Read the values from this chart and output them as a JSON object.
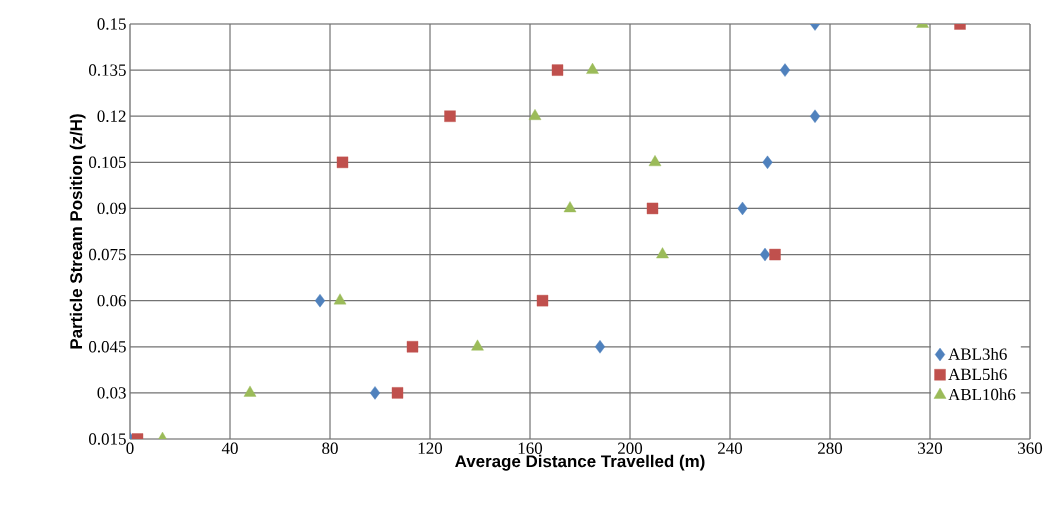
{
  "chart_data": {
    "type": "scatter",
    "xlabel": "Average Distance Travelled (m)",
    "ylabel": "Particle Stream Position (z/H)",
    "xlim": [
      0,
      360
    ],
    "xticks": [
      0,
      40,
      80,
      120,
      160,
      200,
      240,
      280,
      320,
      360
    ],
    "ylim": [
      0.015,
      0.15
    ],
    "yticks": [
      0.015,
      0.03,
      0.045,
      0.06,
      0.075,
      0.09,
      0.105,
      0.12,
      0.135,
      0.15
    ],
    "grid": true,
    "legend": "bottom right",
    "series": [
      {
        "name": "ABL3h6",
        "color": "#4f81bd",
        "marker": "diamond",
        "x": [
          0,
          98,
          188,
          76,
          254,
          245,
          255,
          274,
          262,
          274
        ],
        "values": [
          0.015,
          0.03,
          0.045,
          0.06,
          0.075,
          0.09,
          0.105,
          0.12,
          0.135,
          0.15
        ]
      },
      {
        "name": "ABL5h6",
        "color": "#c0504d",
        "marker": "square",
        "x": [
          3,
          107,
          113,
          165,
          258,
          209,
          85,
          128,
          171,
          332
        ],
        "values": [
          0.015,
          0.03,
          0.045,
          0.06,
          0.075,
          0.09,
          0.105,
          0.12,
          0.135,
          0.15
        ]
      },
      {
        "name": "ABL10h6",
        "color": "#9bbb59",
        "marker": "triangle",
        "x": [
          13,
          48,
          139,
          84,
          213,
          176,
          210,
          162,
          185,
          317
        ],
        "values": [
          0.015,
          0.03,
          0.045,
          0.06,
          0.075,
          0.09,
          0.105,
          0.12,
          0.135,
          0.15
        ]
      }
    ]
  }
}
